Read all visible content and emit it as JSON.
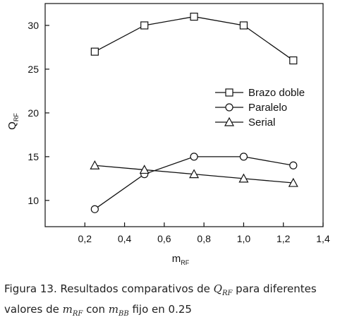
{
  "chart_data": {
    "type": "line",
    "xlabel": "m",
    "xlabel_sub": "RF",
    "ylabel": "Q",
    "ylabel_sub": "RF",
    "xlim": [
      0.0,
      1.4
    ],
    "ylim": [
      7,
      32.5
    ],
    "xticks": [
      "0,2",
      "0,4",
      "0,6",
      "0,8",
      "1,0",
      "1,2",
      "1,4"
    ],
    "xtick_values": [
      0.2,
      0.4,
      0.6,
      0.8,
      1.0,
      1.2,
      1.4
    ],
    "yticks": [
      "10",
      "15",
      "20",
      "25",
      "30"
    ],
    "ytick_values": [
      10,
      15,
      20,
      25,
      30
    ],
    "grid": false,
    "legend_position": "center-right",
    "x": [
      0.25,
      0.5,
      0.75,
      1.0,
      1.25
    ],
    "series": [
      {
        "name": "Brazo doble",
        "marker": "square",
        "values": [
          27,
          30,
          31,
          30,
          26
        ]
      },
      {
        "name": "Paralelo",
        "marker": "circle",
        "values": [
          9,
          13,
          15,
          15,
          14
        ]
      },
      {
        "name": "Serial",
        "marker": "triangle",
        "values": [
          14,
          13.5,
          13,
          12.5,
          12
        ]
      }
    ]
  },
  "caption": {
    "prefix": "Figura 13. Resultados comparativos de ",
    "q": "Q",
    "q_sub": "RF",
    "middle": " para diferentes valores de ",
    "m1": "m",
    "m1_sub": "RF",
    "con": " con ",
    "m2": "m",
    "m2_sub": "BB",
    "suffix": " fijo en 0.25"
  }
}
